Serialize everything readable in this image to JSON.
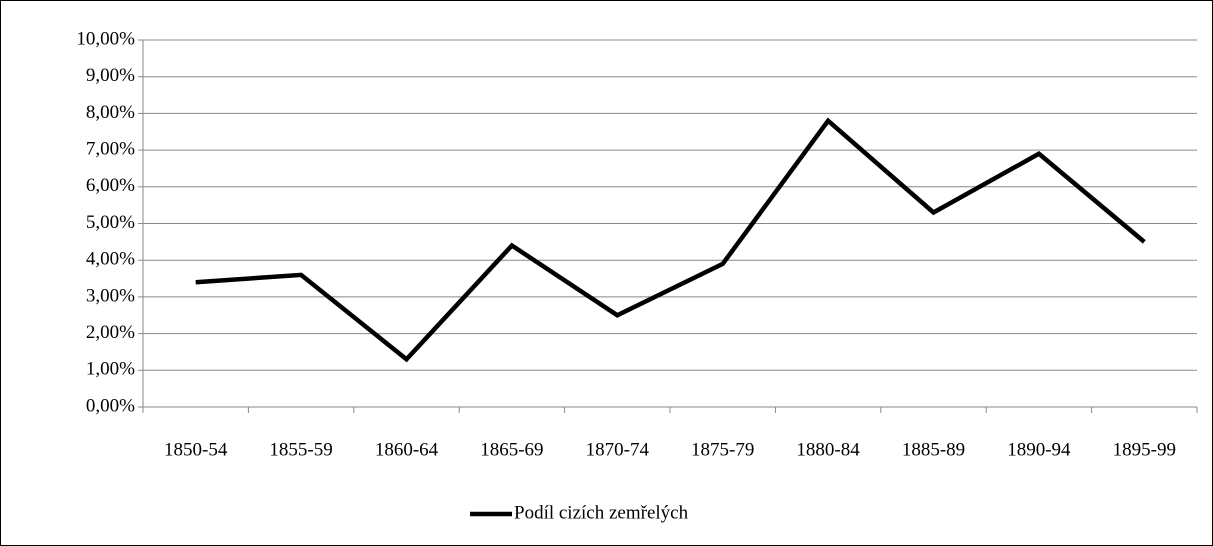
{
  "chart_data": {
    "type": "line",
    "categories": [
      "1850-54",
      "1855-59",
      "1860-64",
      "1865-69",
      "1870-74",
      "1875-79",
      "1880-84",
      "1885-89",
      "1890-94",
      "1895-99"
    ],
    "series": [
      {
        "name": "Podíl cizích zemřelých",
        "color": "#000000",
        "values": [
          3.4,
          3.6,
          1.3,
          4.4,
          2.5,
          3.9,
          7.8,
          5.3,
          6.9,
          4.5
        ]
      }
    ],
    "ylim": [
      0,
      10
    ],
    "yticks": [
      {
        "value": 0,
        "label": "0,00%"
      },
      {
        "value": 1,
        "label": "1,00%"
      },
      {
        "value": 2,
        "label": "2,00%"
      },
      {
        "value": 3,
        "label": "3,00%"
      },
      {
        "value": 4,
        "label": "4,00%"
      },
      {
        "value": 5,
        "label": "5,00%"
      },
      {
        "value": 6,
        "label": "6,00%"
      },
      {
        "value": 7,
        "label": "7,00%"
      },
      {
        "value": 8,
        "label": "8,00%"
      },
      {
        "value": 9,
        "label": "9,00%"
      },
      {
        "value": 10,
        "label": "10,00%"
      }
    ],
    "grid": true,
    "legend": "bottom"
  }
}
